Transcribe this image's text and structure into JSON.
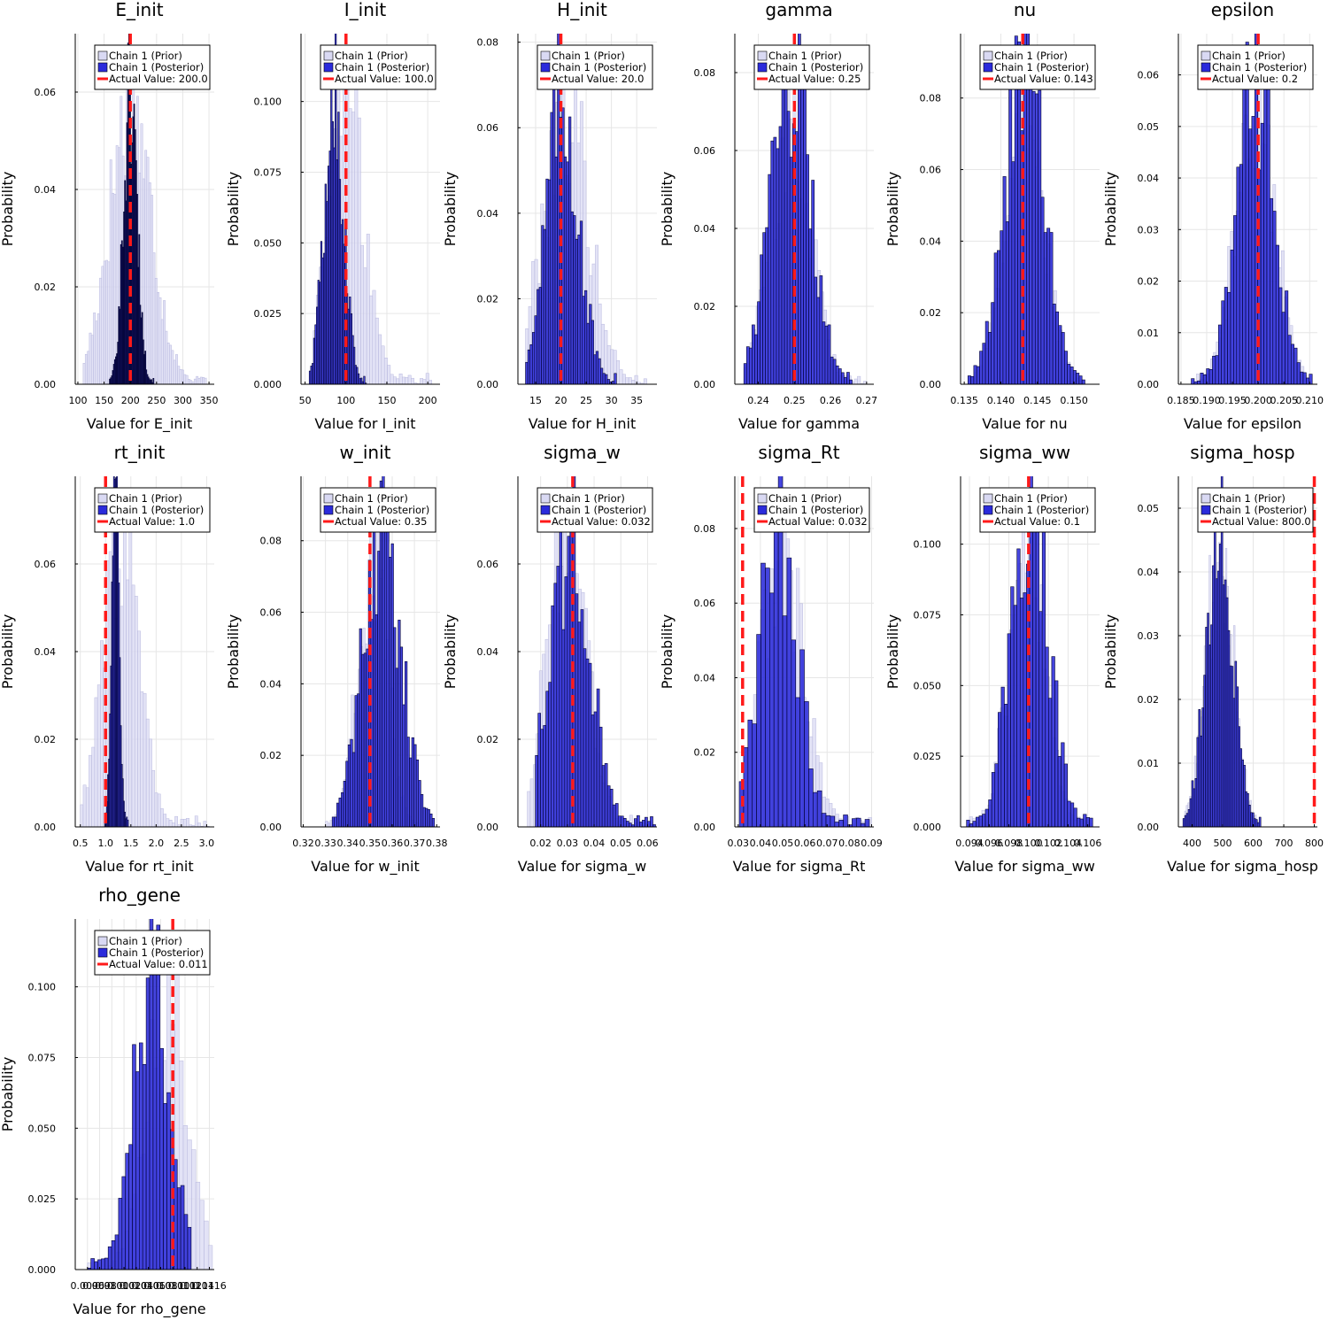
{
  "colors": {
    "prior": "#d9d9f3",
    "posterior": "#2b2bdb",
    "actual": "#ff1a1a"
  },
  "legend": {
    "prior": "Chain 1 (Prior)",
    "posterior": "Chain 1 (Posterior)",
    "actual_prefix": "Actual Value: "
  },
  "ylabel": "Probability",
  "chart_data": [
    {
      "type": "bar",
      "title": "E_init",
      "xlabel": "Value for E_init",
      "ylabel": "Probability",
      "xlim": [
        95,
        360
      ],
      "ylim": [
        0,
        0.072
      ],
      "xticks": [
        100,
        150,
        200,
        250,
        300,
        350
      ],
      "xtick_labels": [
        "100",
        "150",
        "200",
        "250",
        "300",
        "350"
      ],
      "yticks": [
        0,
        0.02,
        0.04,
        0.06
      ],
      "ytick_labels": [
        "0.00",
        "0.02",
        "0.04",
        "0.06"
      ],
      "actual_value": 200,
      "actual_label": "200.0",
      "legend_position": "top-right",
      "prior": {
        "center": 200,
        "sd": 40,
        "count": 60,
        "range": [
          110,
          345
        ]
      },
      "posterior": {
        "center": 200,
        "sd": 13,
        "count": 44,
        "range": [
          160,
          245
        ]
      }
    },
    {
      "type": "bar",
      "title": "I_init",
      "xlabel": "Value for I_init",
      "ylabel": "Probability",
      "xlim": [
        45,
        215
      ],
      "ylim": [
        0,
        0.124
      ],
      "xticks": [
        50,
        100,
        150,
        200
      ],
      "xtick_labels": [
        "50",
        "100",
        "150",
        "200"
      ],
      "yticks": [
        0,
        0.025,
        0.05,
        0.075,
        0.1
      ],
      "ytick_labels": [
        "0.000",
        "0.025",
        "0.050",
        "0.075",
        "0.100"
      ],
      "actual_value": 100,
      "actual_label": "100.0",
      "legend_position": "top-right",
      "prior": {
        "center": 100,
        "sd": 22,
        "count": 40,
        "range": [
          60,
          205
        ]
      },
      "posterior": {
        "center": 85,
        "sd": 12,
        "count": 40,
        "range": [
          55,
          125
        ]
      }
    },
    {
      "type": "bar",
      "title": "H_init",
      "xlabel": "Value for H_init",
      "ylabel": "Probability",
      "xlim": [
        11.5,
        39
      ],
      "ylim": [
        0,
        0.082
      ],
      "xticks": [
        15,
        20,
        25,
        30,
        35
      ],
      "xtick_labels": [
        "15",
        "20",
        "25",
        "30",
        "35"
      ],
      "yticks": [
        0,
        0.02,
        0.04,
        0.06,
        0.08
      ],
      "ytick_labels": [
        "0.00",
        "0.02",
        "0.04",
        "0.06",
        "0.08"
      ],
      "actual_value": 20,
      "actual_label": "20.0",
      "legend_position": "top-right",
      "prior": {
        "center": 21,
        "sd": 4.5,
        "count": 40,
        "range": [
          13,
          37
        ]
      },
      "posterior": {
        "center": 20.3,
        "sd": 3.2,
        "count": 40,
        "range": [
          13,
          31
        ]
      }
    },
    {
      "type": "bar",
      "title": "gamma",
      "xlabel": "Value for gamma",
      "ylabel": "Probability",
      "xlim": [
        0.2335,
        0.272
      ],
      "ylim": [
        0,
        0.09
      ],
      "xticks": [
        0.24,
        0.25,
        0.26,
        0.27
      ],
      "xtick_labels": [
        "0.24",
        "0.25",
        "0.26",
        "0.27"
      ],
      "yticks": [
        0,
        0.02,
        0.04,
        0.06,
        0.08
      ],
      "ytick_labels": [
        "0.00",
        "0.02",
        "0.04",
        "0.06",
        "0.08"
      ],
      "actual_value": 0.25,
      "actual_label": "0.25",
      "legend_position": "top-right",
      "prior": {
        "center": 0.249,
        "sd": 0.0055,
        "count": 40,
        "range": [
          0.236,
          0.27
        ]
      },
      "posterior": {
        "center": 0.249,
        "sd": 0.0055,
        "count": 40,
        "range": [
          0.236,
          0.266
        ]
      }
    },
    {
      "type": "bar",
      "title": "nu",
      "xlabel": "Value for nu",
      "ylabel": "Probability",
      "xlim": [
        0.1345,
        0.1535
      ],
      "ylim": [
        0,
        0.098
      ],
      "xticks": [
        0.135,
        0.14,
        0.145,
        0.15
      ],
      "xtick_labels": [
        "0.135",
        "0.140",
        "0.145",
        "0.150"
      ],
      "yticks": [
        0,
        0.02,
        0.04,
        0.06,
        0.08
      ],
      "ytick_labels": [
        "0.00",
        "0.02",
        "0.04",
        "0.06",
        "0.08"
      ],
      "actual_value": 0.143,
      "actual_label": "0.143",
      "legend_position": "top-right",
      "prior": {
        "center": 0.1432,
        "sd": 0.0027,
        "count": 40,
        "range": [
          0.136,
          0.151
        ]
      },
      "posterior": {
        "center": 0.1432,
        "sd": 0.0027,
        "count": 40,
        "range": [
          0.1355,
          0.1515
        ]
      }
    },
    {
      "type": "bar",
      "title": "epsilon",
      "xlabel": "Value for epsilon",
      "ylabel": "Probability",
      "xlim": [
        0.1845,
        0.2115
      ],
      "ylim": [
        0,
        0.068
      ],
      "xticks": [
        0.185,
        0.19,
        0.195,
        0.2,
        0.205,
        0.21
      ],
      "xtick_labels": [
        "0.185",
        "0.190",
        "0.195",
        "0.200",
        "0.205",
        "0.210"
      ],
      "yticks": [
        0,
        0.01,
        0.02,
        0.03,
        0.04,
        0.05,
        0.06
      ],
      "ytick_labels": [
        "0.00",
        "0.01",
        "0.02",
        "0.03",
        "0.04",
        "0.05",
        "0.06"
      ],
      "actual_value": 0.2,
      "actual_label": "0.2",
      "legend_position": "top-right",
      "prior": {
        "center": 0.1995,
        "sd": 0.0037,
        "count": 40,
        "range": [
          0.188,
          0.21
        ]
      },
      "posterior": {
        "center": 0.1995,
        "sd": 0.0037,
        "count": 40,
        "range": [
          0.187,
          0.2105
        ]
      }
    },
    {
      "type": "bar",
      "title": "rt_init",
      "xlabel": "Value for rt_init",
      "ylabel": "Probability",
      "xlim": [
        0.4,
        3.15
      ],
      "ylim": [
        0,
        0.08
      ],
      "xticks": [
        0.5,
        1,
        1.5,
        2,
        2.5,
        3
      ],
      "xtick_labels": [
        "0.5",
        "1.0",
        "1.5",
        "2.0",
        "2.5",
        "3.0"
      ],
      "yticks": [
        0,
        0.02,
        0.04,
        0.06
      ],
      "ytick_labels": [
        "0.00",
        "0.02",
        "0.04",
        "0.06"
      ],
      "actual_value": 1.0,
      "actual_label": "1.0",
      "legend_position": "top-right",
      "prior": {
        "center": 1.3,
        "sd": 0.35,
        "count": 45,
        "range": [
          0.5,
          3.05
        ]
      },
      "posterior": {
        "center": 1.2,
        "sd": 0.075,
        "count": 24,
        "range": [
          0.98,
          1.45
        ]
      }
    },
    {
      "type": "bar",
      "title": "w_init",
      "xlabel": "Value for w_init",
      "ylabel": "Probability",
      "xlim": [
        0.319,
        0.3815
      ],
      "ylim": [
        0,
        0.098
      ],
      "xticks": [
        0.32,
        0.33,
        0.34,
        0.35,
        0.36,
        0.37,
        0.38
      ],
      "xtick_labels": [
        "0.32",
        "0.33",
        "0.34",
        "0.35",
        "0.36",
        "0.37",
        "0.38"
      ],
      "yticks": [
        0,
        0.02,
        0.04,
        0.06,
        0.08
      ],
      "ytick_labels": [
        "0.00",
        "0.02",
        "0.04",
        "0.06",
        "0.08"
      ],
      "actual_value": 0.35,
      "actual_label": "0.35",
      "legend_position": "top-right",
      "prior": {
        "center": 0.351,
        "sd": 0.0065,
        "count": 40,
        "range": [
          0.33,
          0.372
        ]
      },
      "posterior": {
        "center": 0.3555,
        "sd": 0.0085,
        "count": 45,
        "range": [
          0.333,
          0.379
        ]
      }
    },
    {
      "type": "bar",
      "title": "sigma_w",
      "xlabel": "Value for sigma_w",
      "ylabel": "Probability",
      "xlim": [
        0.0115,
        0.0635
      ],
      "ylim": [
        0,
        0.08
      ],
      "xticks": [
        0.02,
        0.03,
        0.04,
        0.05,
        0.06
      ],
      "xtick_labels": [
        "0.02",
        "0.03",
        "0.04",
        "0.05",
        "0.06"
      ],
      "yticks": [
        0,
        0.02,
        0.04,
        0.06
      ],
      "ytick_labels": [
        "0.00",
        "0.02",
        "0.04",
        "0.06"
      ],
      "actual_value": 0.032,
      "actual_label": "0.032",
      "legend_position": "top-right",
      "prior": {
        "center": 0.03,
        "sd": 0.007,
        "count": 40,
        "range": [
          0.015,
          0.06
        ]
      },
      "posterior": {
        "center": 0.031,
        "sd": 0.0075,
        "count": 45,
        "range": [
          0.018,
          0.063
        ]
      }
    },
    {
      "type": "bar",
      "title": "sigma_Rt",
      "xlabel": "Value for sigma_Rt",
      "ylabel": "Probability",
      "xlim": [
        0.0285,
        0.091
      ],
      "ylim": [
        0,
        0.094
      ],
      "xticks": [
        0.03,
        0.04,
        0.05,
        0.06,
        0.07,
        0.08,
        0.09
      ],
      "xtick_labels": [
        "0.03",
        "0.04",
        "0.05",
        "0.06",
        "0.07",
        "0.08",
        "0.09"
      ],
      "yticks": [
        0,
        0.02,
        0.04,
        0.06,
        0.08
      ],
      "ytick_labels": [
        "0.00",
        "0.02",
        "0.04",
        "0.06",
        "0.08"
      ],
      "actual_value": 0.032,
      "actual_label": "0.032",
      "legend_position": "top-right",
      "prior": {
        "center": 0.05,
        "sd": 0.0095,
        "count": 40,
        "range": [
          0.031,
          0.09
        ]
      },
      "posterior": {
        "center": 0.048,
        "sd": 0.0085,
        "count": 30,
        "range": [
          0.0305,
          0.089
        ]
      }
    },
    {
      "type": "bar",
      "title": "sigma_ww",
      "xlabel": "Value for sigma_ww",
      "ylabel": "Probability",
      "xlim": [
        0.0931,
        0.1072
      ],
      "ylim": [
        0,
        0.124
      ],
      "xticks": [
        0.094,
        0.096,
        0.098,
        0.1,
        0.102,
        0.104,
        0.106
      ],
      "xtick_labels": [
        "0.094",
        "0.096",
        "0.098",
        "0.100",
        "0.102",
        "0.104",
        "0.106"
      ],
      "yticks": [
        0,
        0.025,
        0.05,
        0.075,
        0.1
      ],
      "ytick_labels": [
        "0.000",
        "0.025",
        "0.050",
        "0.075",
        "0.100"
      ],
      "actual_value": 0.1,
      "actual_label": "0.1",
      "legend_position": "top-right",
      "prior": {
        "center": 0.0998,
        "sd": 0.0018,
        "count": 40,
        "range": [
          0.094,
          0.1065
        ]
      },
      "posterior": {
        "center": 0.1001,
        "sd": 0.0019,
        "count": 40,
        "range": [
          0.0937,
          0.1065
        ]
      }
    },
    {
      "type": "bar",
      "title": "sigma_hosp",
      "xlabel": "Value for sigma_hosp",
      "ylabel": "Probability",
      "xlim": [
        355,
        810
      ],
      "ylim": [
        0,
        0.055
      ],
      "xticks": [
        400,
        500,
        600,
        700,
        800
      ],
      "xtick_labels": [
        "400",
        "500",
        "600",
        "700",
        "800"
      ],
      "yticks": [
        0,
        0.01,
        0.02,
        0.03,
        0.04,
        0.05
      ],
      "ytick_labels": [
        "0.00",
        "0.01",
        "0.02",
        "0.03",
        "0.04",
        "0.05"
      ],
      "actual_value": 800,
      "actual_label": "800.0",
      "legend_position": "top-right",
      "prior": {
        "center": 490,
        "sd": 45,
        "count": 45,
        "range": [
          370,
          610
        ]
      },
      "posterior": {
        "center": 490,
        "sd": 44,
        "count": 45,
        "range": [
          370,
          625
        ]
      }
    },
    {
      "type": "bar",
      "title": "rho_gene",
      "xlabel": "Value for rho_gene",
      "ylabel": "Probability",
      "xlim": [
        0.0094,
        0.01168
      ],
      "ylim": [
        0,
        0.124
      ],
      "xticks": [
        0.0096,
        0.0098,
        0.01,
        0.0102,
        0.0104,
        0.0106,
        0.0108,
        0.011,
        0.0112,
        0.0114,
        0.0116
      ],
      "xtick_labels": [
        "0.0096",
        "0.0098",
        "0.0100",
        "0.0102",
        "0.0104",
        "0.0106",
        "0.0108",
        "0.0110",
        "0.0112",
        "0.0114",
        "0.0116"
      ],
      "yticks": [
        0,
        0.025,
        0.05,
        0.075,
        0.1
      ],
      "ytick_labels": [
        "0.000",
        "0.025",
        "0.050",
        "0.075",
        "0.100"
      ],
      "actual_value": 0.011,
      "actual_label": "0.011",
      "legend_position": "top-right",
      "prior": {
        "center": 0.0109,
        "sd": 0.00032,
        "count": 30,
        "range": [
          0.0096,
          0.01165
        ]
      },
      "posterior": {
        "center": 0.01065,
        "sd": 0.0003,
        "count": 30,
        "range": [
          0.0096,
          0.0113
        ]
      }
    }
  ]
}
